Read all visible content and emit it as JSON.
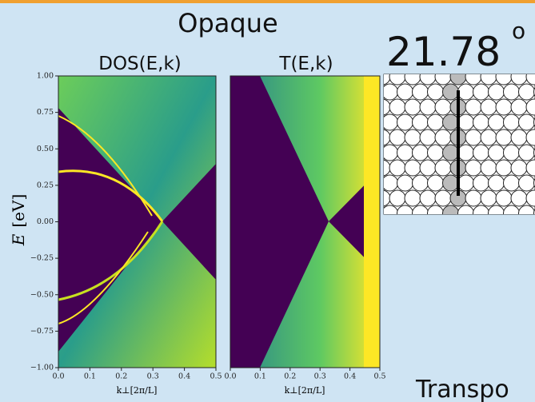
{
  "title": "Opaque",
  "angle": {
    "value": "21.78",
    "unit": "o"
  },
  "footer": "Transpo",
  "panels": [
    {
      "title": "DOS(E,k)"
    },
    {
      "title": "T(E,k)"
    }
  ],
  "ylabel": {
    "symbol": "E",
    "unit": "[eV]"
  },
  "xlabel": "k⊥[2π/L]",
  "ylim": [
    -1,
    1
  ],
  "xlim": [
    0,
    0.5
  ],
  "yticks": [
    {
      "value": 1,
      "label": "1.00"
    },
    {
      "value": 0.75,
      "label": "0.75"
    },
    {
      "value": 0.5,
      "label": "0.50"
    },
    {
      "value": 0.25,
      "label": "0.25"
    },
    {
      "value": 0,
      "label": "0.00"
    },
    {
      "value": -0.25,
      "label": "−0.25"
    },
    {
      "value": -0.5,
      "label": "−0.50"
    },
    {
      "value": -0.75,
      "label": "−0.75"
    },
    {
      "value": -1,
      "label": "−1.00"
    }
  ],
  "xticks": [
    {
      "value": 0,
      "label": "0.0"
    },
    {
      "value": 0.1,
      "label": "0.1"
    },
    {
      "value": 0.2,
      "label": "0.2"
    },
    {
      "value": 0.3,
      "label": "0.3"
    },
    {
      "value": 0.4,
      "label": "0.4"
    },
    {
      "value": 0.5,
      "label": "0.5"
    }
  ]
}
